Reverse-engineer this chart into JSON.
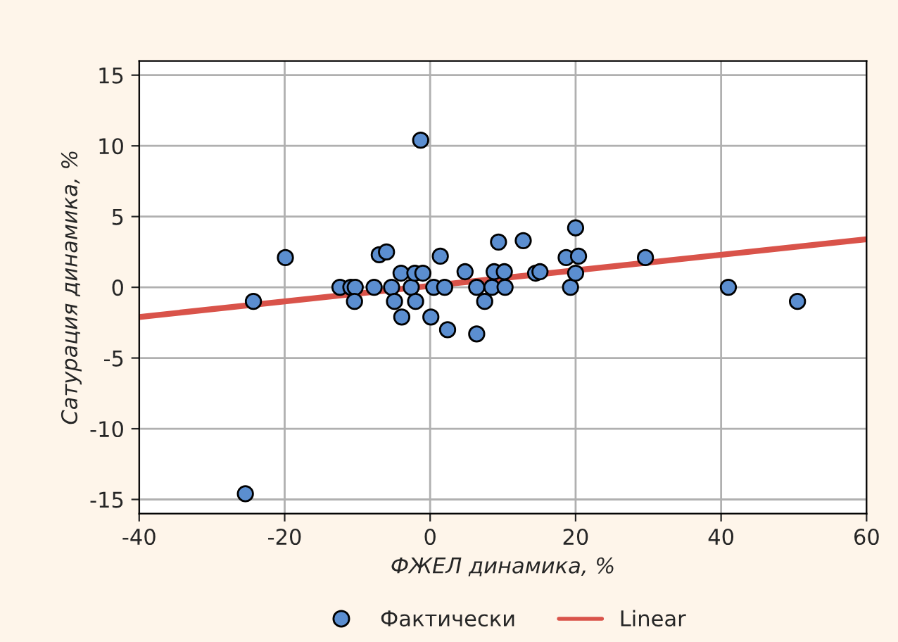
{
  "chart_data": {
    "type": "scatter",
    "xlabel": "ФЖЕЛ динамика, %",
    "ylabel": "Сатурация динамика, %",
    "xlim": [
      -40,
      60
    ],
    "xticks": [
      -40,
      -20,
      0,
      20,
      40,
      60
    ],
    "ylim": [
      -16,
      16
    ],
    "yticks": [
      -15,
      -10,
      -5,
      0,
      5,
      10,
      15
    ],
    "grid": true,
    "legend": "bottom",
    "marker": "circle",
    "series": [
      {
        "name": "Фактически",
        "color": "#5b8ed0",
        "x": [
          -1.3,
          -19.9,
          -24.3,
          -12.4,
          -10.9,
          -10.3,
          -10.4,
          -7.7,
          -7.0,
          -6.0,
          -5.3,
          -4.9,
          -4.0,
          -3.9,
          -2.6,
          -2.1,
          -1.0,
          -2.0,
          0.1,
          0.5,
          2.0,
          1.4,
          2.4,
          4.8,
          6.4,
          6.4,
          7.5,
          8.5,
          8.8,
          9.4,
          10.2,
          10.3,
          12.8,
          14.5,
          15.1,
          18.7,
          19.3,
          20.0,
          20.4,
          20.0,
          29.6,
          41.0,
          50.5,
          -25.4
        ],
        "values": [
          10.4,
          2.1,
          -1.0,
          0,
          0,
          0,
          -1.0,
          0,
          2.3,
          2.5,
          0,
          -1.0,
          1.0,
          -2.1,
          0,
          1.0,
          1.0,
          -1.0,
          -2.1,
          0,
          0,
          2.2,
          -3.0,
          1.1,
          0,
          -3.3,
          -1.0,
          0,
          1.1,
          3.2,
          1.1,
          0,
          3.3,
          1.0,
          1.1,
          2.1,
          0,
          4.2,
          2.2,
          1.0,
          2.1,
          0,
          -1.0,
          -14.6
        ]
      },
      {
        "name": "Linear",
        "color": "#d9534a",
        "type": "line",
        "marker": "none",
        "line_style": "solid",
        "x": [
          -40,
          60
        ],
        "values": [
          -2.1,
          3.4
        ]
      }
    ]
  }
}
